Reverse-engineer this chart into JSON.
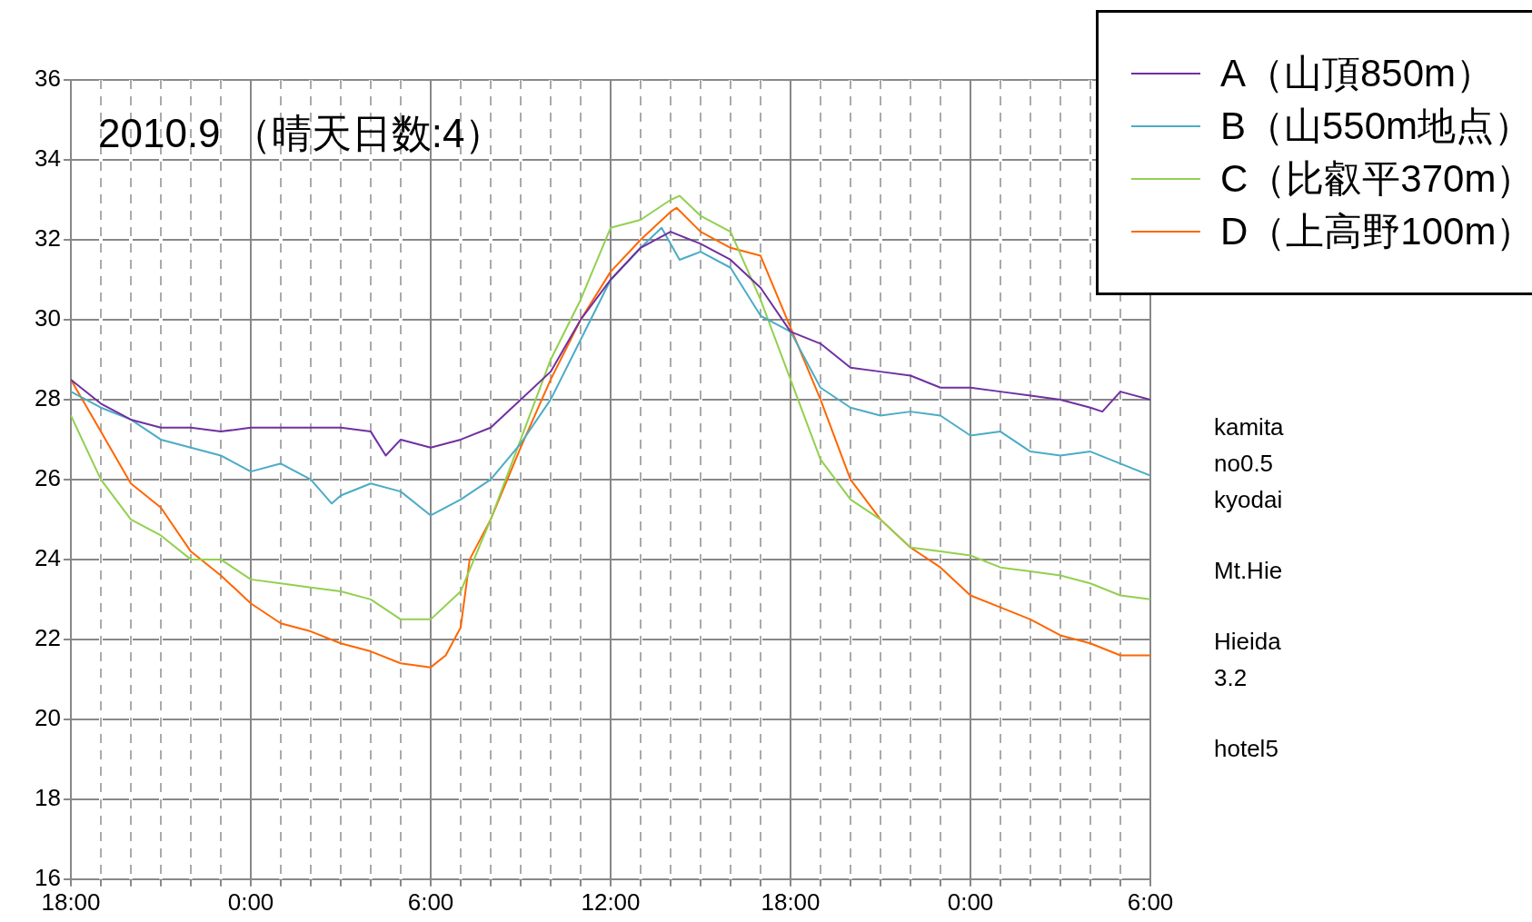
{
  "chart_data": {
    "type": "line",
    "title": "2010.9 （晴天日数:4）",
    "xlim": [
      "2010-09-01T18:00",
      "2010-09-03T06:00"
    ],
    "xticks": [
      {
        "value": "2010-09-01T18:00",
        "label": "18:00"
      },
      {
        "value": "2010-09-01T19:00",
        "label": null
      },
      {
        "value": "2010-09-01T20:00",
        "label": null
      },
      {
        "value": "2010-09-01T21:00",
        "label": null
      },
      {
        "value": "2010-09-01T22:00",
        "label": null
      },
      {
        "value": "2010-09-01T23:00",
        "label": null
      },
      {
        "value": "2010-09-02T00:00",
        "label": "0:00"
      },
      {
        "value": "2010-09-02T01:00",
        "label": null
      },
      {
        "value": "2010-09-02T02:00",
        "label": null
      },
      {
        "value": "2010-09-02T03:00",
        "label": null
      },
      {
        "value": "2010-09-02T04:00",
        "label": null
      },
      {
        "value": "2010-09-02T05:00",
        "label": null
      },
      {
        "value": "2010-09-02T06:00",
        "label": "6:00"
      },
      {
        "value": "2010-09-02T07:00",
        "label": null
      },
      {
        "value": "2010-09-02T08:00",
        "label": null
      },
      {
        "value": "2010-09-02T09:00",
        "label": null
      },
      {
        "value": "2010-09-02T10:00",
        "label": null
      },
      {
        "value": "2010-09-02T11:00",
        "label": null
      },
      {
        "value": "2010-09-02T12:00",
        "label": "12:00"
      },
      {
        "value": "2010-09-02T13:00",
        "label": null
      },
      {
        "value": "2010-09-02T14:00",
        "label": null
      },
      {
        "value": "2010-09-02T15:00",
        "label": null
      },
      {
        "value": "2010-09-02T16:00",
        "label": null
      },
      {
        "value": "2010-09-02T17:00",
        "label": null
      },
      {
        "value": "2010-09-02T18:00",
        "label": "18:00"
      },
      {
        "value": "2010-09-02T19:00",
        "label": null
      },
      {
        "value": "2010-09-02T20:00",
        "label": null
      },
      {
        "value": "2010-09-02T21:00",
        "label": null
      },
      {
        "value": "2010-09-02T22:00",
        "label": null
      },
      {
        "value": "2010-09-02T23:00",
        "label": null
      },
      {
        "value": "2010-09-03T00:00",
        "label": "0:00"
      },
      {
        "value": "2010-09-03T01:00",
        "label": null
      },
      {
        "value": "2010-09-03T02:00",
        "label": null
      },
      {
        "value": "2010-09-03T03:00",
        "label": null
      },
      {
        "value": "2010-09-03T04:00",
        "label": null
      },
      {
        "value": "2010-09-03T05:00",
        "label": null
      },
      {
        "value": "2010-09-03T06:00",
        "label": "6:00"
      }
    ],
    "ylim": [
      16,
      36
    ],
    "yticks": [
      16,
      18,
      20,
      22,
      24,
      26,
      28,
      30,
      32,
      34,
      36
    ],
    "grid": true,
    "legend": "top right",
    "marker": "none",
    "line_style": "solid",
    "series": [
      {
        "name": "A（山頂850m）",
        "color": "#7030a0",
        "x": [
          "2010-09-01T18:00",
          "2010-09-01T19:00",
          "2010-09-01T20:00",
          "2010-09-01T21:00",
          "2010-09-01T22:00",
          "2010-09-01T23:00",
          "2010-09-02T00:00",
          "2010-09-02T01:00",
          "2010-09-02T02:00",
          "2010-09-02T03:00",
          "2010-09-02T04:00",
          "2010-09-02T04:30",
          "2010-09-02T05:00",
          "2010-09-02T06:00",
          "2010-09-02T07:00",
          "2010-09-02T08:00",
          "2010-09-02T09:00",
          "2010-09-02T10:00",
          "2010-09-02T11:00",
          "2010-09-02T12:00",
          "2010-09-02T13:00",
          "2010-09-02T14:00",
          "2010-09-02T15:00",
          "2010-09-02T16:00",
          "2010-09-02T17:00",
          "2010-09-02T18:00",
          "2010-09-02T19:00",
          "2010-09-02T20:00",
          "2010-09-02T21:00",
          "2010-09-02T22:00",
          "2010-09-02T23:00",
          "2010-09-03T00:00",
          "2010-09-03T01:00",
          "2010-09-03T02:00",
          "2010-09-03T03:00",
          "2010-09-03T04:00",
          "2010-09-03T04:24",
          "2010-09-03T05:00",
          "2010-09-03T06:00"
        ],
        "values": [
          28.5,
          27.9,
          27.5,
          27.3,
          27.3,
          27.2,
          27.3,
          27.3,
          27.3,
          27.3,
          27.2,
          26.6,
          27.0,
          26.8,
          27.0,
          27.3,
          28.0,
          28.7,
          30.0,
          31.0,
          31.8,
          32.2,
          31.9,
          31.5,
          30.8,
          29.7,
          29.4,
          28.8,
          28.7,
          28.6,
          28.3,
          28.3,
          28.2,
          28.1,
          28.0,
          27.8,
          27.7,
          28.2,
          28.0
        ]
      },
      {
        "name": "B（山550m地点）",
        "color": "#4bacc6",
        "x": [
          "2010-09-01T18:00",
          "2010-09-01T19:00",
          "2010-09-01T20:00",
          "2010-09-01T21:00",
          "2010-09-01T22:00",
          "2010-09-01T23:00",
          "2010-09-02T00:00",
          "2010-09-02T01:00",
          "2010-09-02T02:00",
          "2010-09-02T02:42",
          "2010-09-02T03:00",
          "2010-09-02T04:00",
          "2010-09-02T05:00",
          "2010-09-02T06:00",
          "2010-09-02T07:00",
          "2010-09-02T08:00",
          "2010-09-02T09:00",
          "2010-09-02T10:00",
          "2010-09-02T11:00",
          "2010-09-02T12:00",
          "2010-09-02T13:00",
          "2010-09-02T13:42",
          "2010-09-02T14:18",
          "2010-09-02T15:00",
          "2010-09-02T16:00",
          "2010-09-02T17:00",
          "2010-09-02T18:00",
          "2010-09-02T19:00",
          "2010-09-02T20:00",
          "2010-09-02T21:00",
          "2010-09-02T22:00",
          "2010-09-02T23:00",
          "2010-09-03T00:00",
          "2010-09-03T01:00",
          "2010-09-03T02:00",
          "2010-09-03T03:00",
          "2010-09-03T04:00",
          "2010-09-03T05:00",
          "2010-09-03T06:00"
        ],
        "values": [
          28.2,
          27.8,
          27.5,
          27.0,
          26.8,
          26.6,
          26.2,
          26.4,
          26.0,
          25.4,
          25.6,
          25.9,
          25.7,
          25.1,
          25.5,
          26.0,
          26.9,
          28.0,
          29.5,
          31.0,
          31.8,
          32.3,
          31.5,
          31.7,
          31.3,
          30.1,
          29.7,
          28.3,
          27.8,
          27.6,
          27.7,
          27.6,
          27.1,
          27.2,
          26.7,
          26.6,
          26.7,
          26.4,
          26.1
        ]
      },
      {
        "name": "C（比叡平370m）",
        "color": "#92d050",
        "x": [
          "2010-09-01T18:00",
          "2010-09-01T19:00",
          "2010-09-01T20:00",
          "2010-09-01T21:00",
          "2010-09-01T22:00",
          "2010-09-01T23:00",
          "2010-09-02T00:00",
          "2010-09-02T01:00",
          "2010-09-02T02:00",
          "2010-09-02T03:00",
          "2010-09-02T04:00",
          "2010-09-02T05:00",
          "2010-09-02T06:00",
          "2010-09-02T07:00",
          "2010-09-02T08:00",
          "2010-09-02T09:00",
          "2010-09-02T10:00",
          "2010-09-02T11:00",
          "2010-09-02T12:00",
          "2010-09-02T13:00",
          "2010-09-02T14:00",
          "2010-09-02T14:18",
          "2010-09-02T15:00",
          "2010-09-02T16:00",
          "2010-09-02T17:00",
          "2010-09-02T18:00",
          "2010-09-02T19:00",
          "2010-09-02T20:00",
          "2010-09-02T21:00",
          "2010-09-02T22:00",
          "2010-09-02T23:00",
          "2010-09-03T00:00",
          "2010-09-03T01:00",
          "2010-09-03T02:00",
          "2010-09-03T03:00",
          "2010-09-03T04:00",
          "2010-09-03T05:00",
          "2010-09-03T06:00"
        ],
        "values": [
          27.6,
          26.0,
          25.0,
          24.6,
          24.0,
          24.0,
          23.5,
          23.4,
          23.3,
          23.2,
          23.0,
          22.5,
          22.5,
          23.2,
          25.0,
          27.0,
          29.0,
          30.5,
          32.3,
          32.5,
          33.0,
          33.1,
          32.6,
          32.2,
          30.5,
          28.5,
          26.5,
          25.5,
          25.0,
          24.3,
          24.2,
          24.1,
          23.8,
          23.7,
          23.6,
          23.4,
          23.1,
          23.0
        ]
      },
      {
        "name": "D（上高野100m）",
        "color": "#ff6600",
        "x": [
          "2010-09-01T18:00",
          "2010-09-01T19:00",
          "2010-09-01T20:00",
          "2010-09-01T21:00",
          "2010-09-01T22:00",
          "2010-09-01T23:00",
          "2010-09-02T00:00",
          "2010-09-02T01:00",
          "2010-09-02T02:00",
          "2010-09-02T03:00",
          "2010-09-02T04:00",
          "2010-09-02T05:00",
          "2010-09-02T06:00",
          "2010-09-02T06:30",
          "2010-09-02T07:00",
          "2010-09-02T07:18",
          "2010-09-02T08:00",
          "2010-09-02T09:00",
          "2010-09-02T10:00",
          "2010-09-02T11:00",
          "2010-09-02T12:00",
          "2010-09-02T13:00",
          "2010-09-02T14:00",
          "2010-09-02T14:12",
          "2010-09-02T15:00",
          "2010-09-02T16:00",
          "2010-09-02T17:00",
          "2010-09-02T18:00",
          "2010-09-02T19:00",
          "2010-09-02T20:00",
          "2010-09-02T21:00",
          "2010-09-02T22:00",
          "2010-09-02T23:00",
          "2010-09-03T00:00",
          "2010-09-03T01:00",
          "2010-09-03T02:00",
          "2010-09-03T03:00",
          "2010-09-03T04:00",
          "2010-09-03T05:00",
          "2010-09-03T06:00"
        ],
        "values": [
          28.5,
          27.2,
          25.9,
          25.3,
          24.2,
          23.6,
          22.9,
          22.4,
          22.2,
          21.9,
          21.7,
          21.4,
          21.3,
          21.6,
          22.3,
          24.0,
          25.0,
          26.8,
          28.5,
          30.0,
          31.2,
          32.0,
          32.7,
          32.8,
          32.2,
          31.8,
          31.6,
          29.8,
          28.0,
          26.0,
          25.0,
          24.3,
          23.8,
          23.1,
          22.8,
          22.5,
          22.1,
          21.9,
          21.6,
          21.6
        ]
      }
    ],
    "annotations": [
      "kamita\nno0.5\nkyodai",
      "Mt.Hie",
      "Hieida\n3.2",
      "hotel5"
    ]
  }
}
